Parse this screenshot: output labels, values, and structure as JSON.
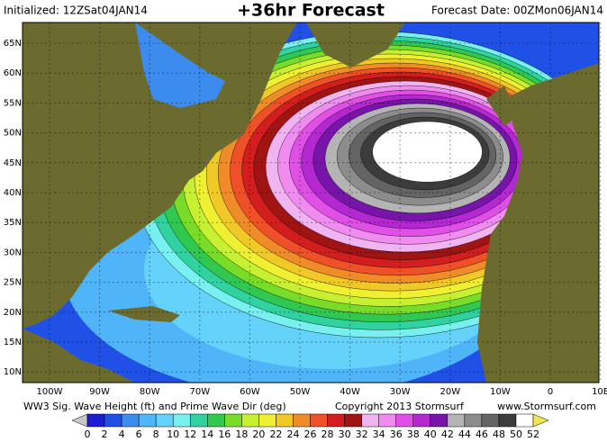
{
  "header": {
    "initialized": "Initialized: 12ZSat04JAN14",
    "title": "+36hr Forecast",
    "forecast_date": "Forecast Date: 00ZMon06JAN14"
  },
  "lat_labels": [
    "65N",
    "60N",
    "55N",
    "50N",
    "45N",
    "40N",
    "35N",
    "30N",
    "25N",
    "20N",
    "15N",
    "10N"
  ],
  "lon_labels": [
    "100W",
    "90W",
    "80W",
    "70W",
    "60W",
    "50W",
    "40W",
    "30W",
    "20W",
    "10W",
    "0",
    "10E"
  ],
  "footer": {
    "description": "WW3 Sig. Wave Height (ft) and Prime Wave Dir (deg)",
    "copyright": "Copyright 2013 Stormsurf",
    "website": "www.Stormsurf.com"
  },
  "colorbar": {
    "ticks": [
      0,
      2,
      4,
      6,
      8,
      10,
      12,
      14,
      16,
      18,
      20,
      22,
      24,
      26,
      28,
      30,
      32,
      34,
      36,
      38,
      40,
      42,
      44,
      46,
      48,
      50,
      52
    ],
    "colors": [
      "#1c1cd0",
      "#2050e6",
      "#3c8cf0",
      "#50b4f8",
      "#64d2fa",
      "#78f0f0",
      "#30d2a0",
      "#30c850",
      "#78dc28",
      "#c8f032",
      "#f0f032",
      "#f0c828",
      "#f08c28",
      "#f05028",
      "#d21e1e",
      "#a01414",
      "#f0b4f0",
      "#f08cf0",
      "#e050e6",
      "#b428d2",
      "#7814aa",
      "#b4b4b4",
      "#8c8c8c",
      "#646464",
      "#3c3c3c",
      "#ffffff"
    ],
    "under_color": "#c8c8c8",
    "over_color": "#f0e650"
  }
}
